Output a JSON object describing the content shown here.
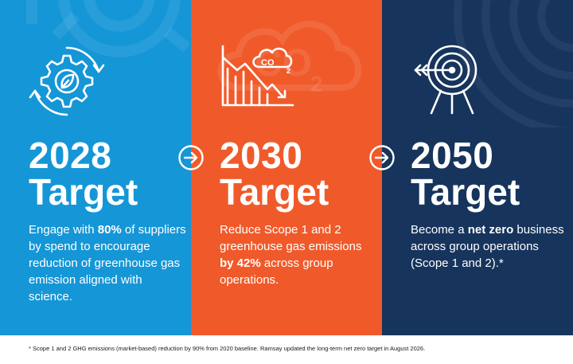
{
  "panels": [
    {
      "year": "2028",
      "word": "Target",
      "icon": "gear-leaf-cycle-icon",
      "color": "#1596d6",
      "desc": [
        {
          "text": "Engage with ",
          "bold": false
        },
        {
          "text": "80%",
          "bold": true
        },
        {
          "text": " of suppliers by spend to encourage reduction of greenhouse gas emission aligned with science.",
          "bold": false
        }
      ]
    },
    {
      "year": "2030",
      "word": "Target",
      "icon": "co2-decline-chart-icon",
      "color": "#f05a2a",
      "co2_label": "CO",
      "co2_sub": "2",
      "desc": [
        {
          "text": "Reduce Scope 1 and 2 greenhouse gas emissions ",
          "bold": false
        },
        {
          "text": "by 42%",
          "bold": true
        },
        {
          "text": " across group operations.",
          "bold": false
        }
      ]
    },
    {
      "year": "2050",
      "word": "Target",
      "icon": "target-arrow-icon",
      "color": "#16345c",
      "desc": [
        {
          "text": "Become a ",
          "bold": false
        },
        {
          "text": "net zero",
          "bold": true
        },
        {
          "text": " business across group operations (Scope 1 and 2).*",
          "bold": false
        }
      ]
    }
  ],
  "arrows": [
    "arrow-right-circle-icon",
    "arrow-right-circle-icon"
  ],
  "footnote": "* Scope 1 and 2 GHG emissions (market-based) reduction by 90% from 2020 baseline. Ramsay updated the long-term net zero target in August 2026."
}
